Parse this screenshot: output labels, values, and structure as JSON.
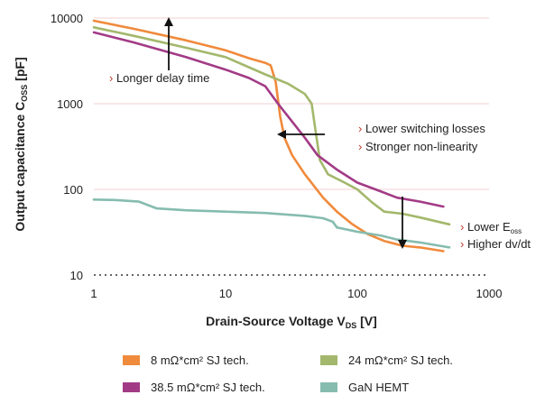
{
  "chart_data": {
    "type": "line",
    "x_scale": "log",
    "y_scale": "log",
    "xlim": [
      1,
      1000
    ],
    "ylim": [
      10,
      10000
    ],
    "grid": true,
    "legend_position": "bottom",
    "xlabel": {
      "main": "Drain-Source Voltage V",
      "sub": "DS",
      "unit": " [V]"
    },
    "ylabel": {
      "main": "Output capacitance C",
      "sub": "OSS",
      "unit": " [pF]"
    },
    "x_ticks": [
      {
        "value": 1,
        "label": "1"
      },
      {
        "value": 10,
        "label": "10"
      },
      {
        "value": 100,
        "label": "100"
      },
      {
        "value": 1000,
        "label": "1000"
      }
    ],
    "y_ticks": [
      {
        "value": 10,
        "label": "10"
      },
      {
        "value": 100,
        "label": "100"
      },
      {
        "value": 1000,
        "label": "1000"
      },
      {
        "value": 10000,
        "label": "10000"
      }
    ],
    "series": [
      {
        "name": "8 mΩ*cm² SJ tech.",
        "color": "#f08a3c",
        "points": [
          [
            1,
            9300
          ],
          [
            2,
            7500
          ],
          [
            5,
            5500
          ],
          [
            10,
            4200
          ],
          [
            15,
            3400
          ],
          [
            20,
            3000
          ],
          [
            22,
            2800
          ],
          [
            24,
            1800
          ],
          [
            26,
            700
          ],
          [
            28,
            400
          ],
          [
            32,
            250
          ],
          [
            40,
            150
          ],
          [
            55,
            80
          ],
          [
            70,
            55
          ],
          [
            90,
            40
          ],
          [
            120,
            30
          ],
          [
            160,
            25
          ],
          [
            220,
            22
          ],
          [
            300,
            21
          ],
          [
            450,
            19
          ]
        ]
      },
      {
        "name": "24 mΩ*cm² SJ tech.",
        "color": "#a3b86c",
        "points": [
          [
            1,
            7800
          ],
          [
            2,
            6200
          ],
          [
            5,
            4500
          ],
          [
            10,
            3500
          ],
          [
            20,
            2200
          ],
          [
            30,
            1700
          ],
          [
            40,
            1300
          ],
          [
            45,
            1000
          ],
          [
            48,
            500
          ],
          [
            52,
            220
          ],
          [
            60,
            150
          ],
          [
            80,
            120
          ],
          [
            100,
            100
          ],
          [
            130,
            70
          ],
          [
            160,
            55
          ],
          [
            220,
            52
          ],
          [
            300,
            47
          ],
          [
            500,
            39
          ]
        ]
      },
      {
        "name": "38.5 mΩ*cm² SJ tech.",
        "color": "#a23b86",
        "points": [
          [
            1,
            6800
          ],
          [
            2,
            5200
          ],
          [
            5,
            3500
          ],
          [
            10,
            2500
          ],
          [
            15,
            2000
          ],
          [
            20,
            1600
          ],
          [
            25,
            1000
          ],
          [
            30,
            700
          ],
          [
            40,
            400
          ],
          [
            50,
            250
          ],
          [
            70,
            170
          ],
          [
            100,
            120
          ],
          [
            150,
            95
          ],
          [
            200,
            80
          ],
          [
            300,
            72
          ],
          [
            450,
            63
          ]
        ]
      },
      {
        "name": "GaN HEMT",
        "color": "#86bcb0",
        "points": [
          [
            1,
            76
          ],
          [
            1.5,
            75
          ],
          [
            2.2,
            72
          ],
          [
            3,
            60
          ],
          [
            5,
            57
          ],
          [
            10,
            55
          ],
          [
            20,
            53
          ],
          [
            40,
            49
          ],
          [
            55,
            46
          ],
          [
            65,
            42
          ],
          [
            70,
            36
          ],
          [
            100,
            32
          ],
          [
            150,
            29
          ],
          [
            200,
            26
          ],
          [
            300,
            24
          ],
          [
            500,
            21
          ]
        ]
      }
    ],
    "annotations": [
      {
        "bullet": "›",
        "text": "Longer delay time"
      },
      {
        "bullet": "›",
        "text": "Lower switching losses"
      },
      {
        "bullet": "›",
        "text": "Stronger non-linearity"
      },
      {
        "bullet": "›",
        "text": "Lower E",
        "sub": "oss"
      },
      {
        "bullet": "›",
        "text": "Higher dv/dt"
      }
    ]
  }
}
